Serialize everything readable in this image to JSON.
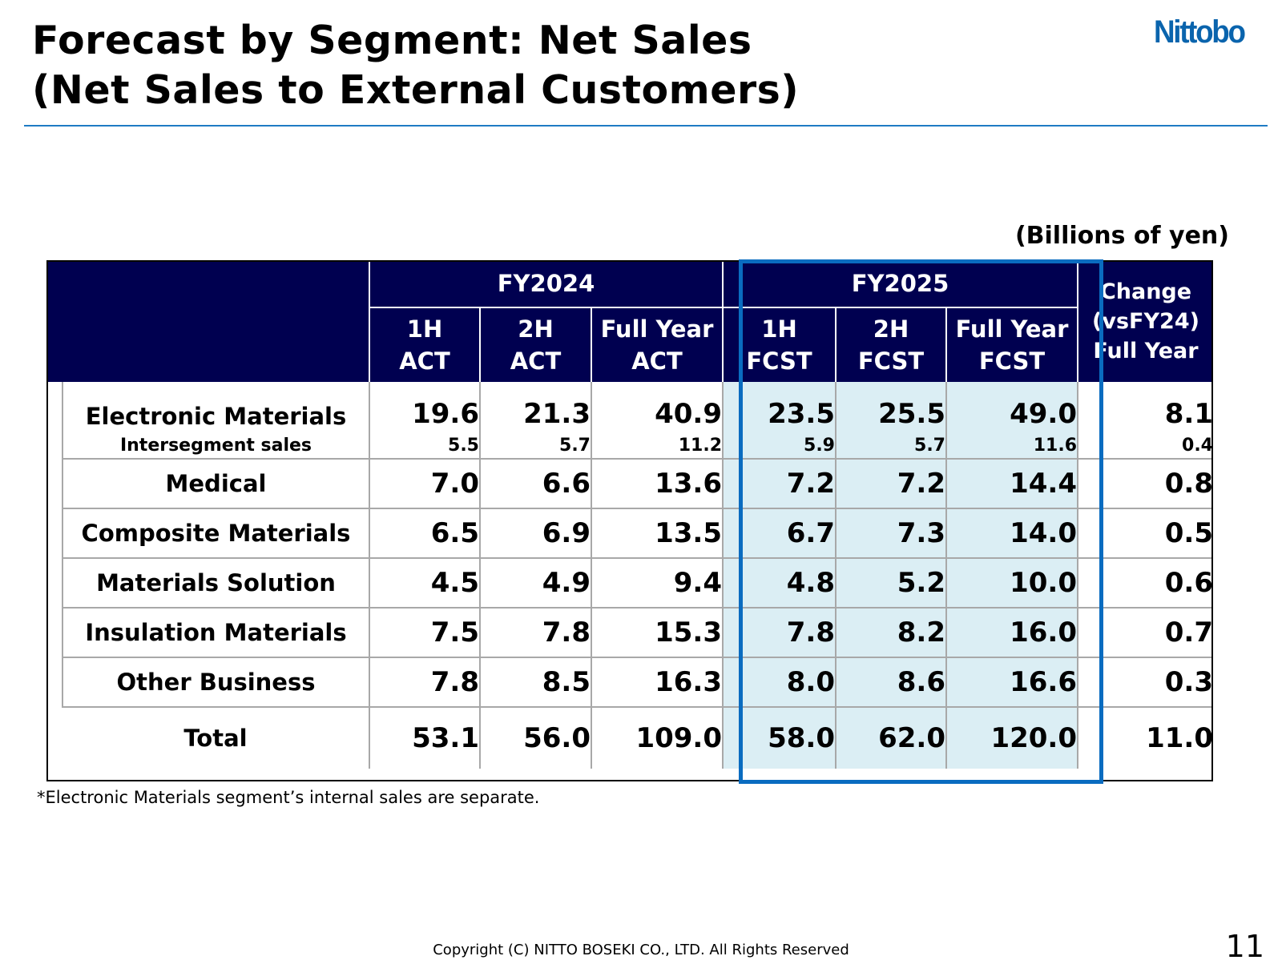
{
  "title": {
    "line1": "Forecast by Segment: Net Sales",
    "line2": "(Net Sales to External Customers)"
  },
  "logo": "Nittobo",
  "unit": "(Billions of yen)",
  "table": {
    "group_headers": {
      "fy2024": "FY2024",
      "fy2025": "FY2025"
    },
    "change_header": [
      "Change",
      "(vsFY24)",
      "Full Year"
    ],
    "columns": [
      {
        "l1": "1H",
        "l2": "ACT"
      },
      {
        "l1": "2H",
        "l2": "ACT"
      },
      {
        "l1": "Full Year",
        "l2": "ACT"
      },
      {
        "l1": "1H",
        "l2": "FCST"
      },
      {
        "l1": "2H",
        "l2": "FCST"
      },
      {
        "l1": "Full Year",
        "l2": "FCST"
      }
    ],
    "rows": {
      "electronic": {
        "label": "Electronic Materials",
        "v": [
          "19.6",
          "21.3",
          "40.9",
          "23.5",
          "25.5",
          "49.0",
          "8.1"
        ]
      },
      "intersegment": {
        "label": "Intersegment sales",
        "v": [
          "5.5",
          "5.7",
          "11.2",
          "5.9",
          "5.7",
          "11.6",
          "0.4"
        ]
      },
      "medical": {
        "label": "Medical",
        "v": [
          "7.0",
          "6.6",
          "13.6",
          "7.2",
          "7.2",
          "14.4",
          "0.8"
        ]
      },
      "composite": {
        "label": "Composite Materials",
        "v": [
          "6.5",
          "6.9",
          "13.5",
          "6.7",
          "7.3",
          "14.0",
          "0.5"
        ]
      },
      "materials_solution": {
        "label": "Materials Solution",
        "v": [
          "4.5",
          "4.9",
          "9.4",
          "4.8",
          "5.2",
          "10.0",
          "0.6"
        ]
      },
      "insulation": {
        "label": "Insulation Materials",
        "v": [
          "7.5",
          "7.8",
          "15.3",
          "7.8",
          "8.2",
          "16.0",
          "0.7"
        ]
      },
      "other": {
        "label": "Other Business",
        "v": [
          "7.8",
          "8.5",
          "16.3",
          "8.0",
          "8.6",
          "16.6",
          "0.3"
        ]
      },
      "total": {
        "label": "Total",
        "v": [
          "53.1",
          "56.0",
          "109.0",
          "58.0",
          "62.0",
          "120.0",
          "11.0"
        ]
      }
    }
  },
  "note": "*Electronic Materials segment’s internal sales are separate.",
  "footer": {
    "copyright": "Copyright (C)  NITTO BOSEKI CO., LTD. All Rights Reserved",
    "page_number": "11"
  },
  "colors": {
    "header_bg": "#000050",
    "forecast_fill": "#dbeef4",
    "forecast_frame": "#0a6cc0",
    "title_rule": "#1f7bc4",
    "logo": "#0a64ad"
  }
}
